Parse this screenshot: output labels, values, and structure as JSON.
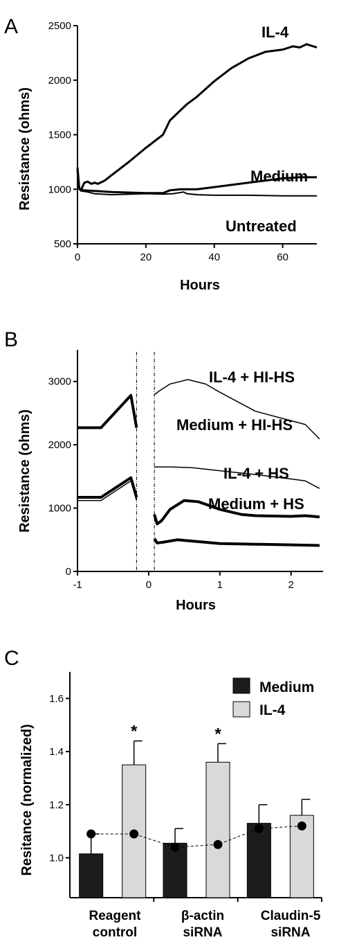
{
  "chart_data": [
    {
      "panel": "A",
      "type": "line",
      "xlabel": "Hours",
      "ylabel": "Resistance (ohms)",
      "xlim": [
        0,
        70
      ],
      "ylim": [
        500,
        2500
      ],
      "xticks": [
        0,
        20,
        40,
        60
      ],
      "yticks": [
        500,
        1000,
        1500,
        2000,
        2500
      ],
      "series": [
        {
          "name": "IL-4",
          "x": [
            0,
            0.5,
            1,
            2,
            3,
            4,
            5,
            6,
            8,
            10,
            15,
            20,
            25,
            27,
            30,
            32,
            35,
            40,
            45,
            50,
            55,
            60,
            63,
            65,
            67,
            68,
            70
          ],
          "y": [
            1200,
            1010,
            990,
            1060,
            1070,
            1050,
            1060,
            1050,
            1080,
            1130,
            1250,
            1380,
            1500,
            1630,
            1720,
            1780,
            1850,
            1990,
            2110,
            2200,
            2260,
            2280,
            2310,
            2300,
            2330,
            2320,
            2300
          ],
          "width": 3
        },
        {
          "name": "Medium",
          "x": [
            0,
            0.5,
            1,
            2,
            5,
            10,
            20,
            25,
            27,
            30,
            35,
            40,
            50,
            60,
            65,
            70
          ],
          "y": [
            1180,
            1010,
            995,
            990,
            985,
            975,
            965,
            965,
            990,
            1000,
            1000,
            1020,
            1060,
            1100,
            1110,
            1110
          ],
          "width": 3
        },
        {
          "name": "Untreated",
          "x": [
            0,
            0.5,
            1,
            3,
            5,
            10,
            20,
            25,
            28,
            31,
            32,
            35,
            40,
            50,
            60,
            70
          ],
          "y": [
            1150,
            1000,
            985,
            975,
            960,
            950,
            960,
            955,
            960,
            975,
            960,
            950,
            945,
            945,
            940,
            940
          ],
          "width": 2
        }
      ]
    },
    {
      "panel": "B",
      "type": "line",
      "xlabel": "Hours",
      "ylabel": "Resistance (ohms)",
      "xlim": [
        -1,
        2.45
      ],
      "ylim": [
        0,
        3500
      ],
      "xticks": [
        -1,
        0,
        1,
        2
      ],
      "yticks": [
        0,
        1000,
        2000,
        3000
      ],
      "vlines": [
        -0.17,
        0.08
      ],
      "series": [
        {
          "name": "IL-4 + HI-HS",
          "segments": [
            {
              "x": [
                -1,
                -0.67,
                -0.25,
                -0.17
              ],
              "y": [
                2270,
                2270,
                2780,
                2270
              ],
              "width": 4
            },
            {
              "x": [
                0.08,
                0.15,
                0.3,
                0.55,
                0.8,
                1.0,
                1.5,
                2.0,
                2.2,
                2.4
              ],
              "y": [
                2790,
                2850,
                2960,
                3030,
                2960,
                2830,
                2530,
                2380,
                2320,
                2090
              ],
              "width": 1.5
            }
          ]
        },
        {
          "name": "Medium + HI-HS",
          "segments": [
            {
              "x": [
                -1,
                -0.67,
                -0.25,
                -0.17
              ],
              "y": [
                1170,
                1170,
                1480,
                1170
              ],
              "width": 4
            },
            {
              "x": [
                0.08,
                0.3,
                0.6,
                1.0,
                1.5,
                2.0,
                2.2,
                2.4
              ],
              "y": [
                1650,
                1650,
                1640,
                1590,
                1530,
                1460,
                1430,
                1310
              ],
              "width": 1.5
            }
          ]
        },
        {
          "name": "IL-4 + HS",
          "segments": [
            {
              "x": [
                -1,
                -0.67,
                -0.25,
                -0.17
              ],
              "y": [
                1120,
                1120,
                1430,
                1120
              ],
              "width": 1.5
            },
            {
              "x": [
                0.08,
                0.12,
                0.18,
                0.3,
                0.5,
                0.7,
                1.0,
                1.3,
                1.5,
                2.0,
                2.2,
                2.4
              ],
              "y": [
                900,
                750,
                800,
                980,
                1120,
                1100,
                980,
                900,
                880,
                870,
                880,
                860
              ],
              "width": 4
            }
          ]
        },
        {
          "name": "Medium + HS",
          "segments": [
            {
              "x": [
                0.08,
                0.12,
                0.2,
                0.4,
                0.7,
                1.0,
                1.5,
                2.0,
                2.4
              ],
              "y": [
                520,
                450,
                460,
                500,
                470,
                440,
                430,
                420,
                410
              ],
              "width": 4
            }
          ]
        }
      ]
    },
    {
      "panel": "C",
      "type": "bar",
      "ylabel": "Resitance (normalized)",
      "ylim": [
        0.85,
        1.7
      ],
      "yticks": [
        1.0,
        1.2,
        1.4,
        1.6
      ],
      "categories": [
        "Reagent control",
        "β-actin siRNA",
        "Claudin-5 siRNA"
      ],
      "series": [
        {
          "name": "Medium",
          "color": "#1c1c1c",
          "values": [
            1.015,
            1.055,
            1.13
          ],
          "errors": [
            0.075,
            0.055,
            0.07
          ],
          "stars": [
            false,
            false,
            false
          ]
        },
        {
          "name": "IL-4",
          "color": "#d9d9d9",
          "values": [
            1.35,
            1.36,
            1.16
          ],
          "errors": [
            0.09,
            0.07,
            0.06
          ],
          "stars": [
            true,
            true,
            false
          ]
        }
      ],
      "dot_series": {
        "values": [
          1.09,
          1.09,
          1.04,
          1.05,
          1.11,
          1.12
        ]
      }
    }
  ],
  "labels": {
    "panelA": "A",
    "panelB": "B",
    "panelC": "C",
    "a_il4": "IL-4",
    "a_medium": "Medium",
    "a_untreated": "Untreated",
    "b_il4hihs": "IL-4 + HI-HS",
    "b_medhihs": "Medium + HI-HS",
    "b_il4hs": "IL-4 + HS",
    "b_medhs": "Medium + HS",
    "hours": "Hours",
    "resistance": "Resistance (ohms)",
    "resitance_norm": "Resitance (normalized)",
    "leg_medium": "Medium",
    "leg_il4": "IL-4",
    "cat1a": "Reagent",
    "cat1b": "control",
    "cat2a": "β-actin",
    "cat2b": "siRNA",
    "cat3a": "Claudin-5",
    "cat3b": "siRNA",
    "star": "*"
  }
}
